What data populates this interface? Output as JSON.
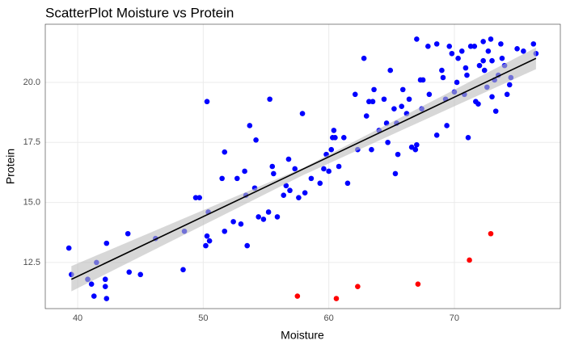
{
  "chart_data": {
    "type": "scatter",
    "title": "ScatterPlot Moisture vs Protein",
    "x_label": "Moisture",
    "y_label": "Protein",
    "xlim": [
      37.42,
      78.44
    ],
    "ylim": [
      10.58,
      22.42
    ],
    "xticks": [
      40,
      50,
      60,
      70
    ],
    "yticks": [
      12.5,
      {
        "value": 15,
        "label": "15.0"
      },
      17.5,
      {
        "value": 20,
        "label": "20.0"
      }
    ],
    "grid": true,
    "points": [
      {
        "color": "#0000ff",
        "x": [
          39.3,
          39.5,
          40.8,
          41.1,
          41.3,
          41.5,
          42.2,
          42.2,
          42.3,
          42.3,
          44.0,
          44.1,
          45.0,
          46.2,
          48.4,
          48.5,
          49.4,
          49.7,
          50.2,
          50.3,
          50.3,
          50.5,
          50.4,
          51.5,
          51.7,
          51.7,
          52.4,
          52.7,
          53.0,
          53.3,
          53.4,
          53.5,
          53.7,
          54.1,
          54.2,
          54.4,
          54.8,
          55.3,
          55.5,
          55.6,
          55.9,
          55.2,
          56.4,
          56.6,
          56.8,
          56.9,
          57.3,
          57.6,
          57.9,
          58.1,
          58.6,
          59.3,
          59.6,
          59.8,
          60.0,
          60.2,
          60.3,
          60.4,
          60.5,
          60.8,
          61.2,
          61.5,
          62.1,
          62.3,
          62.8,
          63.0,
          63.2,
          63.5,
          63.6,
          63.4,
          64.0,
          64.4,
          64.6,
          64.9,
          64.7,
          65.2,
          65.3,
          65.4,
          65.5,
          65.8,
          65.9,
          66.2,
          66.4,
          66.6,
          66.9,
          67.0,
          67.0,
          67.3,
          67.5,
          67.4,
          67.9,
          68.0,
          68.6,
          68.6,
          69.0,
          69.1,
          69.3,
          69.4,
          69.6,
          69.8,
          70.0,
          70.2,
          70.3,
          70.6,
          70.8,
          70.9,
          71.0,
          71.1,
          71.3,
          71.6,
          71.7,
          71.9,
          72.0,
          72.3,
          72.4,
          72.6,
          72.7,
          72.9,
          73.0,
          73.2,
          73.3,
          73.5,
          73.7,
          73.8,
          74.0,
          74.2,
          74.4,
          75.0,
          75.5,
          76.3,
          76.5,
          72.3,
          73.0,
          74.5
        ],
        "y": [
          13.1,
          12.0,
          11.8,
          11.6,
          11.1,
          12.5,
          11.5,
          11.8,
          11.0,
          13.3,
          13.7,
          12.1,
          12.0,
          13.5,
          12.2,
          13.8,
          15.2,
          15.2,
          13.2,
          13.6,
          19.2,
          13.4,
          14.6,
          16.0,
          13.8,
          17.1,
          14.2,
          16.0,
          14.1,
          16.3,
          15.3,
          13.2,
          18.2,
          15.6,
          17.6,
          14.4,
          14.3,
          19.3,
          16.5,
          16.2,
          14.4,
          14.6,
          15.3,
          15.7,
          16.8,
          15.5,
          16.4,
          15.2,
          18.7,
          15.4,
          16.0,
          15.8,
          16.4,
          17.0,
          16.3,
          17.2,
          17.7,
          18.0,
          17.7,
          16.5,
          17.7,
          15.8,
          19.5,
          17.2,
          21.0,
          18.6,
          19.2,
          19.2,
          19.7,
          17.2,
          18.0,
          19.3,
          18.3,
          20.5,
          17.5,
          18.9,
          16.2,
          18.3,
          17.0,
          19.0,
          19.7,
          18.7,
          19.3,
          17.3,
          17.2,
          17.4,
          21.8,
          20.1,
          20.1,
          18.9,
          21.5,
          19.5,
          17.8,
          21.6,
          20.5,
          20.2,
          19.3,
          18.2,
          21.5,
          21.2,
          19.6,
          20.0,
          21.0,
          21.3,
          19.5,
          20.6,
          20.3,
          17.7,
          21.5,
          21.5,
          19.2,
          19.1,
          20.7,
          21.7,
          20.5,
          19.8,
          21.3,
          21.8,
          19.4,
          20.1,
          18.8,
          20.3,
          21.6,
          21.0,
          20.7,
          19.5,
          19.9,
          21.4,
          21.3,
          21.6,
          21.2,
          20.9,
          20.9,
          20.2
        ]
      },
      {
        "color": "#ff0000",
        "x": [
          57.5,
          60.6,
          62.3,
          67.1,
          71.2,
          72.9
        ],
        "y": [
          11.1,
          11.0,
          11.5,
          11.6,
          12.6,
          13.7
        ]
      }
    ],
    "band": {
      "color": "#bdbdbd",
      "x": [
        39.5,
        58,
        76.5
      ],
      "lower": [
        11.3,
        16.15,
        20.55
      ],
      "upper": [
        12.35,
        16.45,
        21.45
      ]
    },
    "fit_line": {
      "color": "#000000",
      "x": [
        39.5,
        76.5
      ],
      "y": [
        11.8,
        21.0
      ]
    }
  }
}
